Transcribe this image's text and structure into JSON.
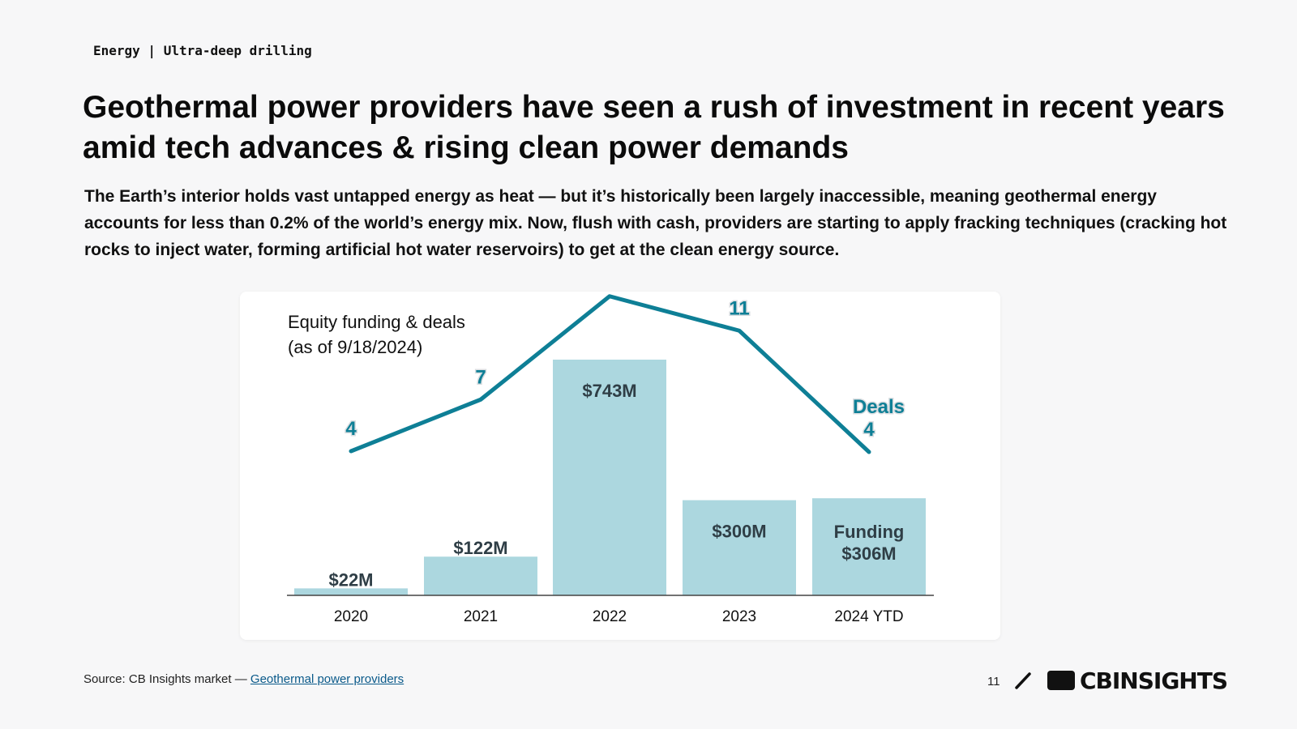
{
  "header": {
    "tag": "Energy | Ultra-deep drilling",
    "title": "Geothermal power providers have seen a rush of investment in recent years amid tech advances & rising clean power demands",
    "subtitle": "The Earth’s interior holds vast untapped energy as heat — but it’s historically been largely inaccessible, meaning geothermal energy accounts for less than 0.2% of the world’s energy mix. Now, flush with cash, providers are starting to apply fracking techniques (cracking hot rocks to inject water, forming artificial hot water reservoirs) to get at the clean energy source."
  },
  "chart_data": {
    "type": "bar",
    "title_line1": "Equity funding & deals",
    "title_line2": "(as of 9/18/2024)",
    "categories": [
      "2020",
      "2021",
      "2022",
      "2023",
      "2024 YTD"
    ],
    "series": [
      {
        "values": [
          22,
          122,
          743,
          300,
          306
        ],
        "labels": [
          "$22M",
          "$122M",
          "$743M",
          "$300M",
          "$306M"
        ]
      },
      {
        "values": [
          4,
          7,
          13,
          11,
          4
        ]
      }
    ],
    "annotations": {
      "deals": "Deals",
      "funding": "Funding"
    },
    "colors": {
      "bar": "#acd7df",
      "line": "#0e7f96"
    },
    "grid": false
  },
  "footer": {
    "source_prefix": "Source: CB Insights market — ",
    "source_link": "Geothermal power providers",
    "page_number": "11",
    "logo_text": "CBINSIGHTS"
  }
}
